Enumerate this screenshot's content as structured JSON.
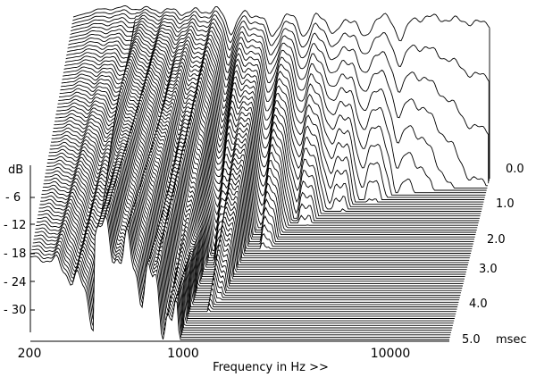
{
  "chart_data": {
    "type": "area",
    "title": "",
    "xlabel": "Frequency in Hz >>",
    "ylabel": "dB",
    "zlabel": "msec",
    "x_scale": "log",
    "xlim": [
      200,
      20000
    ],
    "ylim": [
      -36,
      0
    ],
    "x_ticks": [
      {
        "value": 200,
        "label": "200"
      },
      {
        "value": 1000,
        "label": "1000"
      },
      {
        "value": 10000,
        "label": "10000"
      }
    ],
    "y_ticks": [
      {
        "value": 0,
        "label": "dB"
      },
      {
        "value": -6,
        "label": "- 6"
      },
      {
        "value": -12,
        "label": "- 12"
      },
      {
        "value": -18,
        "label": "- 18"
      },
      {
        "value": -24,
        "label": "- 24"
      },
      {
        "value": -30,
        "label": "- 30"
      }
    ],
    "time_ticks": [
      {
        "value": 0.0,
        "label": "0.0"
      },
      {
        "value": 1.0,
        "label": "1.0"
      },
      {
        "value": 2.0,
        "label": "2.0"
      },
      {
        "value": 3.0,
        "label": "3.0"
      },
      {
        "value": 4.0,
        "label": "4.0"
      },
      {
        "value": 5.0,
        "label": "5.0"
      }
    ],
    "time_range_msec": [
      0,
      5
    ],
    "slice_count": 70,
    "initial_response_db": {
      "freq_hz": [
        200,
        260,
        350,
        500,
        700,
        1000,
        1500,
        2000,
        3000,
        4000,
        5000,
        6000,
        8000,
        10000,
        13000,
        16000,
        20000
      ],
      "level_db": [
        -2.5,
        -1,
        -0.5,
        -1,
        -1.5,
        -1,
        -2,
        -2.5,
        -2,
        -2.5,
        -3,
        -2.5,
        -3,
        -2.5,
        -3,
        -3.5,
        -4
      ]
    },
    "decay_notch_freqs_hz": [
      1150,
      1800,
      2600,
      3600,
      5000,
      7500
    ],
    "grid": false,
    "legend": "none"
  }
}
